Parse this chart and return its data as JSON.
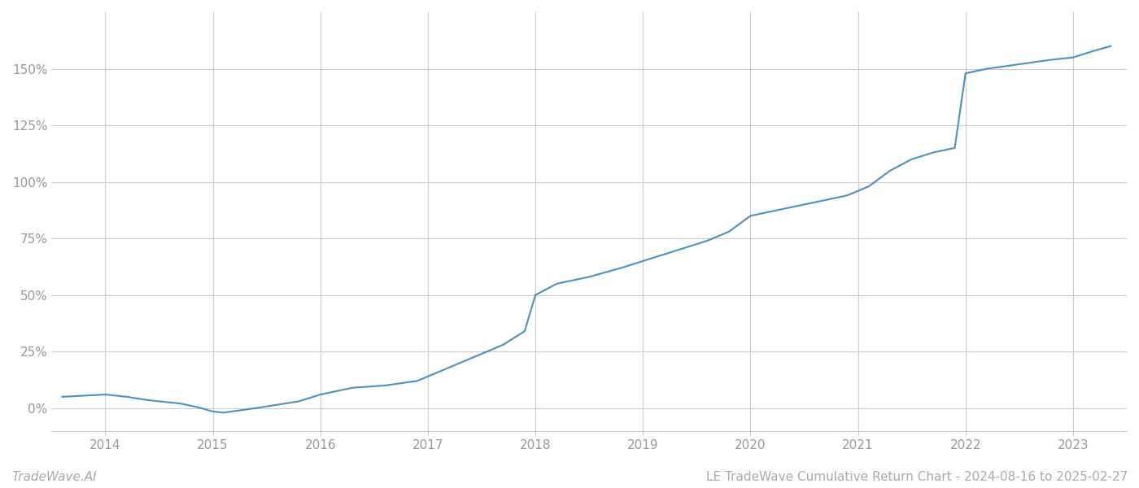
{
  "title": "LE TradeWave Cumulative Return Chart - 2024-08-16 to 2025-02-27",
  "watermark": "TradeWave.AI",
  "line_color": "#4a90c4",
  "background_color": "#ffffff",
  "grid_color": "#cccccc",
  "x_years": [
    2014,
    2015,
    2016,
    2017,
    2018,
    2019,
    2020,
    2021,
    2022,
    2023
  ],
  "data_points": [
    [
      2013.6,
      5
    ],
    [
      2013.8,
      5.5
    ],
    [
      2014.0,
      6
    ],
    [
      2014.2,
      5
    ],
    [
      2014.4,
      3.5
    ],
    [
      2014.7,
      2
    ],
    [
      2014.85,
      0.5
    ],
    [
      2015.0,
      -1.5
    ],
    [
      2015.1,
      -2
    ],
    [
      2015.25,
      -1
    ],
    [
      2015.4,
      0
    ],
    [
      2015.6,
      1.5
    ],
    [
      2015.8,
      3
    ],
    [
      2016.0,
      6
    ],
    [
      2016.3,
      9
    ],
    [
      2016.6,
      10
    ],
    [
      2016.9,
      12
    ],
    [
      2017.1,
      16
    ],
    [
      2017.3,
      20
    ],
    [
      2017.5,
      24
    ],
    [
      2017.7,
      28
    ],
    [
      2017.9,
      34
    ],
    [
      2018.0,
      50
    ],
    [
      2018.2,
      55
    ],
    [
      2018.5,
      58
    ],
    [
      2018.8,
      62
    ],
    [
      2019.0,
      65
    ],
    [
      2019.2,
      68
    ],
    [
      2019.4,
      71
    ],
    [
      2019.6,
      74
    ],
    [
      2019.8,
      78
    ],
    [
      2020.0,
      85
    ],
    [
      2020.3,
      88
    ],
    [
      2020.6,
      91
    ],
    [
      2020.9,
      94
    ],
    [
      2021.1,
      98
    ],
    [
      2021.3,
      105
    ],
    [
      2021.5,
      110
    ],
    [
      2021.7,
      113
    ],
    [
      2021.9,
      115
    ],
    [
      2022.0,
      148
    ],
    [
      2022.2,
      150
    ],
    [
      2022.5,
      152
    ],
    [
      2022.8,
      154
    ],
    [
      2023.0,
      155
    ],
    [
      2023.2,
      158
    ],
    [
      2023.35,
      160
    ]
  ],
  "ylim": [
    -10,
    175
  ],
  "xlim": [
    2013.5,
    2023.5
  ],
  "yticks": [
    0,
    25,
    50,
    75,
    100,
    125,
    150
  ],
  "line_width": 1.5,
  "title_fontsize": 11,
  "tick_fontsize": 11,
  "watermark_fontsize": 11,
  "axis_text_color": "#999999",
  "footer_text_color": "#aaaaaa"
}
